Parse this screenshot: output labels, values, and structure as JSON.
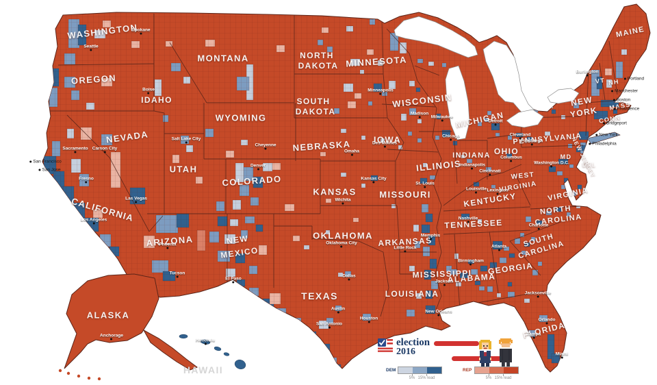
{
  "colors": {
    "rep_base": "#c54a28",
    "rep_light": "#db8168",
    "rep_pale": "#eab4a3",
    "dem_dark": "#31618e",
    "dem_mid": "#7d9cc0",
    "dem_pale": "#c5cfdd",
    "water": "#ffffff",
    "navy": "#1c3a66",
    "bar_red": "#d23230"
  },
  "legend": {
    "logo_line1": "election",
    "logo_line2": "2016",
    "dem": {
      "label": "DEM",
      "colors": [
        "#cdd5e1",
        "#8ca7c5",
        "#30608e"
      ],
      "tick1": "5%",
      "tick2": "15% lead"
    },
    "rep": {
      "label": "REP",
      "colors": [
        "#e6a28f",
        "#d76f52",
        "#c44324"
      ],
      "tick1": "5%",
      "tick2": "15% lead"
    }
  },
  "labels": {
    "states": [
      [
        "WASHINGTON",
        150,
        46,
        13,
        -7
      ],
      [
        "OREGON",
        137,
        116,
        13,
        -4
      ],
      [
        "IDAHO",
        229,
        146,
        12,
        0
      ],
      [
        "MONTANA",
        326,
        85,
        13,
        0
      ],
      [
        "NEVADA",
        186,
        200,
        13,
        -8
      ],
      [
        "UTAH",
        268,
        247,
        13,
        0
      ],
      [
        "WYOMING",
        352,
        172,
        13,
        0
      ],
      [
        "COLORADO",
        368,
        264,
        13,
        -4
      ],
      [
        "CALIFORNIA",
        150,
        306,
        13,
        16
      ],
      [
        "ARIZONA",
        248,
        352,
        13,
        -5
      ],
      [
        "NEW",
        347,
        350,
        12,
        -8
      ],
      [
        "MEXICO",
        350,
        369,
        12,
        -8
      ],
      [
        "NORTH",
        463,
        81,
        12,
        0
      ],
      [
        "DAKOTA",
        465,
        96,
        12,
        0
      ],
      [
        "SOUTH",
        458,
        148,
        12,
        0
      ],
      [
        "DAKOTA",
        461,
        163,
        12,
        0
      ],
      [
        "NEBRASKA",
        470,
        213,
        13,
        -4
      ],
      [
        "KANSAS",
        489,
        280,
        13,
        0
      ],
      [
        "OKLAHOMA",
        501,
        344,
        13,
        0
      ],
      [
        "TEXAS",
        467,
        432,
        14,
        0
      ],
      [
        "MINNESOTA",
        550,
        90,
        13,
        -4
      ],
      [
        "WISCONSIN",
        617,
        147,
        13,
        -7
      ],
      [
        "IOWA",
        566,
        204,
        13,
        0
      ],
      [
        "MISSOURI",
        592,
        284,
        13,
        0
      ],
      [
        "ILLINOIS",
        641,
        242,
        13,
        -6
      ],
      [
        "MICHIGAN",
        701,
        175,
        12,
        -12
      ],
      [
        "INDIANA",
        689,
        227,
        11,
        0
      ],
      [
        "OHIO",
        740,
        221,
        12,
        0
      ],
      [
        "KENTUCKY",
        716,
        292,
        12,
        -9
      ],
      [
        "TENNESSEE",
        692,
        327,
        12,
        -3
      ],
      [
        "WEST",
        764,
        257,
        10,
        -6
      ],
      [
        "VIRGINIA",
        757,
        273,
        10,
        -10
      ],
      [
        "VIRGINIA",
        830,
        284,
        11,
        -12
      ],
      [
        "NORTH",
        812,
        307,
        11,
        -7
      ],
      [
        "CAROLINA",
        816,
        321,
        11,
        -7
      ],
      [
        "SOUTH",
        787,
        351,
        11,
        -16
      ],
      [
        "CAROLINA",
        791,
        365,
        11,
        -16
      ],
      [
        "GEORGIA",
        746,
        392,
        12,
        -8
      ],
      [
        "ALABAMA",
        689,
        406,
        12,
        -4
      ],
      [
        "MISSISSIPPI",
        646,
        400,
        12,
        -2
      ],
      [
        "LOUISIANA",
        602,
        429,
        12,
        0
      ],
      [
        "ARKANSAS",
        592,
        353,
        12,
        -3
      ],
      [
        "NEW",
        850,
        148,
        12,
        -10
      ],
      [
        "YORK",
        853,
        164,
        12,
        -10
      ],
      [
        "PENNSYLVANIA",
        800,
        203,
        11,
        -5
      ],
      [
        "MAINE",
        921,
        47,
        11,
        -12
      ],
      [
        "VT",
        877,
        118,
        9,
        -8
      ],
      [
        "NH",
        897,
        120,
        9,
        -8
      ],
      [
        "MASS",
        906,
        155,
        9,
        -10
      ],
      [
        "CONN",
        891,
        174,
        9,
        -10
      ],
      [
        "MD",
        827,
        229,
        9,
        0
      ],
      [
        "DEL",
        861,
        241,
        8,
        0
      ],
      [
        "NEW JERSEY",
        853,
        230,
        8,
        62
      ],
      [
        "FLORIDA",
        795,
        482,
        12,
        -14
      ],
      [
        "ALASKA",
        158,
        460,
        13,
        0
      ],
      [
        "HAWAII",
        297,
        540,
        14,
        0,
        "#d6d6d6"
      ]
    ],
    "cities": [
      [
        "Seattle",
        133,
        68,
        "w"
      ],
      [
        "Spokane",
        206,
        44,
        "w"
      ],
      [
        "Boise",
        217,
        131,
        "w"
      ],
      [
        "Salt Lake City",
        272,
        203,
        "w"
      ],
      [
        "Carson City",
        153,
        217,
        "w"
      ],
      [
        "Sacramento",
        110,
        217,
        "w"
      ],
      [
        "San Francisco",
        69,
        236,
        "d"
      ],
      [
        "San Jose",
        75,
        248,
        "d"
      ],
      [
        "Fresno",
        126,
        261,
        "w"
      ],
      [
        "Las Vegas",
        199,
        290,
        "w"
      ],
      [
        "Los Angeles",
        137,
        321,
        "w"
      ],
      [
        "Phoenix",
        245,
        357,
        "w"
      ],
      [
        "Tucson",
        259,
        399,
        "w"
      ],
      [
        "El Paso",
        341,
        407,
        "w"
      ],
      [
        "Cheyenne",
        388,
        212,
        "w"
      ],
      [
        "Denver",
        377,
        242,
        "w"
      ],
      [
        "Minneapolis",
        556,
        132,
        "w"
      ],
      [
        "Madison",
        613,
        166,
        "w"
      ],
      [
        "Milwaukee",
        646,
        171,
        "w"
      ],
      [
        "Chicago",
        659,
        199,
        "w"
      ],
      [
        "Detroit",
        724,
        177,
        "w"
      ],
      [
        "Cleveland",
        760,
        197,
        "w"
      ],
      [
        "Columbus",
        747,
        230,
        "w"
      ],
      [
        "Cincinnati",
        716,
        250,
        "w"
      ],
      [
        "Indianapolis",
        690,
        241,
        "w"
      ],
      [
        "Des Moines",
        562,
        209,
        "w"
      ],
      [
        "Omaha",
        514,
        221,
        "w"
      ],
      [
        "Kansas City",
        546,
        261,
        "w"
      ],
      [
        "St. Louis",
        621,
        268,
        "w"
      ],
      [
        "Wichita",
        501,
        292,
        "w"
      ],
      [
        "Oklahoma City",
        499,
        355,
        "w"
      ],
      [
        "Little Rock",
        592,
        362,
        "w"
      ],
      [
        "Memphis",
        629,
        344,
        "w"
      ],
      [
        "Nashville",
        684,
        319,
        "w"
      ],
      [
        "Louisville",
        696,
        276,
        "w"
      ],
      [
        "Lexington",
        727,
        278,
        "w"
      ],
      [
        "Birmingham",
        688,
        381,
        "w"
      ],
      [
        "Atlanta",
        729,
        360,
        "w"
      ],
      [
        "Charlotte",
        787,
        329,
        "w"
      ],
      [
        "Jacksonville",
        786,
        428,
        "w"
      ],
      [
        "Orlando",
        799,
        467,
        "w"
      ],
      [
        "Tampa",
        780,
        488,
        "w"
      ],
      [
        "Miami",
        821,
        517,
        "w"
      ],
      [
        "New Orleans",
        641,
        455,
        "w"
      ],
      [
        "Jackson",
        649,
        411,
        "w"
      ],
      [
        "Dallas",
        510,
        403,
        "w"
      ],
      [
        "Austin",
        494,
        451,
        "w"
      ],
      [
        "San Antonio",
        481,
        473,
        "w"
      ],
      [
        "Houston",
        539,
        465,
        "w"
      ],
      [
        "Washington D.C.",
        806,
        238,
        "w"
      ],
      [
        "Pittsburgh",
        777,
        206,
        "w"
      ],
      [
        "Burlington",
        858,
        105,
        "w"
      ],
      [
        "Portland",
        929,
        115,
        "d"
      ],
      [
        "Manchester",
        915,
        133,
        "d"
      ],
      [
        "Boston",
        911,
        146,
        "d"
      ],
      [
        "Providence",
        918,
        159,
        "d"
      ],
      [
        "Bridgeport",
        901,
        180,
        "d"
      ],
      [
        "New York",
        889,
        197,
        "d"
      ],
      [
        "Philadelphia",
        883,
        210,
        "d"
      ],
      [
        "Anchorage",
        163,
        490,
        "w"
      ],
      [
        "Honolulu",
        300,
        497,
        "w"
      ]
    ]
  }
}
